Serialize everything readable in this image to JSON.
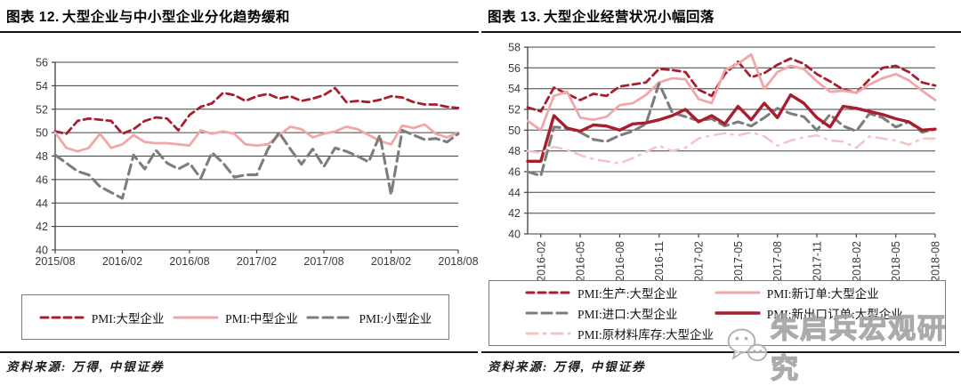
{
  "colors": {
    "dark_red": "#A91E2E",
    "pink": "#F1A7A7",
    "pale_pink": "#F5C4C4",
    "gray": "#7D7D7D",
    "grid": "#404040",
    "axis": "#3a3a3a"
  },
  "panels": [
    {
      "title_prefix": "图表 12.",
      "title": "大型企业与中小型企业分化趋势缓和",
      "source_label": "资料来源: 万得, 中银证券"
    },
    {
      "title_prefix": "图表 13.",
      "title": "大型企业经营状况小幅回落",
      "source_label": "资料来源: 万得, 中银证券"
    }
  ],
  "watermark": {
    "text": "朱启兵宏观研究",
    "icon": "wechat-logo"
  },
  "chart_data": [
    {
      "type": "line",
      "title": "大型企业与中小型企业分化趋势缓和",
      "ylim": [
        40,
        56
      ],
      "ytick_step": 2,
      "grid": true,
      "legend_position": "bottom",
      "x": [
        "2015/08",
        "2015/09",
        "2015/10",
        "2015/11",
        "2015/12",
        "2016/01",
        "2016/02",
        "2016/03",
        "2016/04",
        "2016/05",
        "2016/06",
        "2016/07",
        "2016/08",
        "2016/09",
        "2016/10",
        "2016/11",
        "2016/12",
        "2017/01",
        "2017/02",
        "2017/03",
        "2017/04",
        "2017/05",
        "2017/06",
        "2017/07",
        "2017/08",
        "2017/09",
        "2017/10",
        "2017/11",
        "2017/12",
        "2018/01",
        "2018/02",
        "2018/03",
        "2018/04",
        "2018/05",
        "2018/06",
        "2018/07",
        "2018/08"
      ],
      "xticks": [
        0,
        6,
        12,
        18,
        24,
        30,
        36
      ],
      "series": [
        {
          "name": "PMI:大型企业",
          "color": "dark_red",
          "dash": "8,5",
          "width": 2.8,
          "values": [
            50.1,
            49.9,
            51.0,
            51.2,
            51.1,
            51.0,
            49.9,
            50.3,
            51.0,
            51.3,
            51.2,
            50.2,
            51.5,
            52.2,
            52.5,
            53.4,
            53.2,
            52.7,
            53.1,
            53.3,
            52.9,
            53.1,
            52.7,
            52.9,
            53.2,
            53.8,
            52.6,
            52.7,
            52.6,
            52.8,
            53.1,
            53.0,
            52.6,
            52.4,
            52.4,
            52.2,
            52.1
          ]
        },
        {
          "name": "PMI:中型企业",
          "color": "pink",
          "dash": null,
          "width": 2.8,
          "values": [
            50.0,
            48.7,
            48.4,
            48.7,
            49.9,
            48.7,
            49.0,
            49.8,
            49.2,
            49.1,
            49.1,
            49.0,
            48.9,
            50.2,
            49.9,
            50.1,
            49.9,
            49.0,
            48.9,
            49.0,
            49.8,
            50.5,
            50.3,
            49.6,
            49.9,
            50.1,
            50.5,
            50.3,
            49.8,
            49.3,
            49.0,
            50.6,
            50.4,
            50.7,
            49.9,
            49.6,
            50.0
          ]
        },
        {
          "name": "PMI:小型企业",
          "color": "gray",
          "dash": "11,6",
          "width": 3.1,
          "values": [
            48.1,
            47.4,
            46.7,
            46.4,
            45.4,
            44.9,
            44.4,
            48.1,
            46.9,
            48.5,
            47.4,
            46.9,
            47.4,
            46.1,
            48.3,
            47.4,
            46.2,
            46.4,
            46.4,
            48.6,
            50.0,
            48.6,
            47.3,
            48.6,
            47.1,
            48.7,
            48.4,
            48.0,
            47.5,
            49.8,
            44.7,
            50.2,
            49.8,
            49.4,
            49.5,
            49.2,
            49.9
          ]
        }
      ]
    },
    {
      "type": "line",
      "title": "大型企业经营状况小幅回落",
      "ylim": [
        40,
        58
      ],
      "ytick_step": 2,
      "grid": true,
      "legend_position": "bottom",
      "x": [
        "2016-01",
        "2016-02",
        "2016-03",
        "2016-04",
        "2016-05",
        "2016-06",
        "2016-07",
        "2016-08",
        "2016-09",
        "2016-10",
        "2016-11",
        "2016-12",
        "2017-01",
        "2017-02",
        "2017-03",
        "2017-04",
        "2017-05",
        "2017-06",
        "2017-07",
        "2017-08",
        "2017-09",
        "2017-10",
        "2017-11",
        "2017-12",
        "2018-01",
        "2018-02",
        "2018-03",
        "2018-04",
        "2018-05",
        "2018-06",
        "2018-07",
        "2018-08"
      ],
      "xticks": [
        1,
        4,
        7,
        10,
        13,
        16,
        19,
        22,
        25,
        28,
        31
      ],
      "series": [
        {
          "name": "PMI:生产:大型企业",
          "color": "dark_red",
          "dash": "8,5",
          "width": 2.8,
          "values": [
            52.2,
            51.8,
            54.1,
            53.5,
            52.9,
            53.5,
            53.3,
            54.2,
            54.4,
            54.6,
            55.9,
            55.8,
            55.6,
            53.9,
            53.3,
            55.4,
            56.6,
            55.1,
            55.5,
            56.3,
            56.9,
            56.4,
            55.4,
            54.7,
            53.9,
            53.6,
            54.9,
            56.0,
            56.2,
            55.6,
            54.6,
            54.3
          ]
        },
        {
          "name": "PMI:新订单:大型企业",
          "color": "pink",
          "dash": null,
          "width": 2.8,
          "values": [
            50.9,
            50.0,
            53.3,
            53.7,
            51.2,
            51.0,
            51.3,
            52.4,
            52.6,
            53.4,
            54.6,
            55.0,
            54.9,
            53.0,
            52.6,
            55.8,
            56.4,
            57.3,
            54.0,
            55.6,
            56.2,
            55.9,
            54.7,
            53.7,
            53.8,
            53.6,
            54.4,
            55.0,
            55.4,
            54.8,
            53.8,
            52.9
          ]
        },
        {
          "name": "PMI:进口:大型企业",
          "color": "gray",
          "dash": "11,6",
          "width": 3.1,
          "values": [
            46.0,
            45.6,
            50.3,
            50.2,
            49.8,
            49.1,
            48.9,
            49.5,
            49.9,
            50.6,
            54.5,
            51.7,
            51.3,
            50.9,
            51.1,
            50.4,
            50.8,
            50.4,
            51.2,
            52.1,
            51.6,
            51.3,
            50.0,
            51.5,
            50.4,
            49.9,
            51.6,
            51.2,
            50.3,
            50.8,
            49.8,
            50.1
          ]
        },
        {
          "name": "PMI:新出口订单:大型企业",
          "color": "dark_red",
          "dash": null,
          "width": 3.4,
          "values": [
            47.0,
            47.0,
            51.4,
            50.2,
            49.9,
            50.5,
            50.4,
            50.0,
            50.6,
            50.7,
            51.0,
            51.4,
            52.0,
            50.8,
            51.4,
            50.6,
            52.3,
            51.0,
            52.6,
            51.2,
            53.4,
            52.6,
            51.2,
            50.3,
            52.3,
            52.1,
            51.8,
            51.5,
            51.1,
            50.8,
            50.0,
            50.1
          ]
        },
        {
          "name": "PMI:原材料库存:大型企业",
          "color": "pale_pink",
          "dash": "12,7,2,7",
          "width": 2.5,
          "values": [
            48.0,
            47.8,
            48.4,
            48.1,
            47.6,
            47.2,
            47.0,
            46.8,
            47.3,
            47.9,
            48.5,
            48.0,
            48.3,
            49.2,
            49.5,
            49.7,
            49.5,
            49.8,
            49.4,
            48.5,
            49.0,
            49.3,
            49.5,
            49.0,
            48.9,
            48.3,
            49.4,
            49.2,
            49.0,
            48.6,
            49.2,
            49.2
          ]
        }
      ]
    }
  ]
}
